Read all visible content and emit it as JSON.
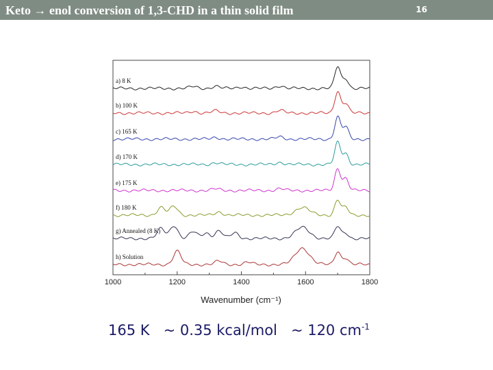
{
  "slide": {
    "title": "Keto → enol conversion of 1,3-CHD in a thin solid film",
    "number": "16",
    "caption": {
      "energy_k": "165 K",
      "energy_kcal": "~ 0.35 kcal/mol",
      "energy_cm_prefix": "~ 120 cm",
      "energy_cm_exp": "-1"
    }
  },
  "chart_data": {
    "type": "line",
    "title": "",
    "xlabel": "Wavenumber (cm⁻¹)",
    "ylabel": "",
    "xlim": [
      1000,
      1800
    ],
    "x_ticks": [
      "1000",
      "1200",
      "1400",
      "1600",
      "1800"
    ],
    "y_axis": "stacked traces, no tick labels",
    "grid": false,
    "series": [
      {
        "name": "a) 8 K",
        "color": "#222222",
        "peaks": [
          {
            "x": 1700,
            "h": 1.0
          },
          {
            "x": 1725,
            "h": 0.45
          },
          {
            "x": 1520,
            "h": 0.12
          },
          {
            "x": 1320,
            "h": 0.1
          },
          {
            "x": 1250,
            "h": 0.08
          },
          {
            "x": 1400,
            "h": 0.07
          }
        ]
      },
      {
        "name": "b) 100 K",
        "color": "#cc3333",
        "peaks": [
          {
            "x": 1700,
            "h": 1.0
          },
          {
            "x": 1725,
            "h": 0.45
          },
          {
            "x": 1520,
            "h": 0.12
          },
          {
            "x": 1320,
            "h": 0.1
          },
          {
            "x": 1250,
            "h": 0.08
          }
        ]
      },
      {
        "name": "c) 165 K",
        "color": "#3344aa",
        "peaks": [
          {
            "x": 1700,
            "h": 1.0
          },
          {
            "x": 1725,
            "h": 0.55
          },
          {
            "x": 1520,
            "h": 0.1
          },
          {
            "x": 1320,
            "h": 0.08
          }
        ]
      },
      {
        "name": "d) 170 K",
        "color": "#2a9a9a",
        "peaks": [
          {
            "x": 1700,
            "h": 1.0
          },
          {
            "x": 1725,
            "h": 0.5
          },
          {
            "x": 1520,
            "h": 0.1
          },
          {
            "x": 1320,
            "h": 0.08
          }
        ]
      },
      {
        "name": "e) 175 K",
        "color": "#cc33cc",
        "peaks": [
          {
            "x": 1700,
            "h": 1.0
          },
          {
            "x": 1725,
            "h": 0.55
          },
          {
            "x": 1520,
            "h": 0.08
          },
          {
            "x": 1320,
            "h": 0.07
          }
        ]
      },
      {
        "name": "f) 180 K",
        "color": "#8a9a2a",
        "peaks": [
          {
            "x": 1700,
            "h": 0.7
          },
          {
            "x": 1725,
            "h": 0.35
          },
          {
            "x": 1150,
            "h": 0.35
          },
          {
            "x": 1190,
            "h": 0.4
          },
          {
            "x": 1590,
            "h": 0.35
          },
          {
            "x": 1330,
            "h": 0.15
          }
        ]
      },
      {
        "name": "g) Annealed (8 K)",
        "color": "#333355",
        "peaks": [
          {
            "x": 1700,
            "h": 0.55
          },
          {
            "x": 1725,
            "h": 0.25
          },
          {
            "x": 1150,
            "h": 0.45
          },
          {
            "x": 1190,
            "h": 0.6
          },
          {
            "x": 1250,
            "h": 0.3
          },
          {
            "x": 1290,
            "h": 0.25
          },
          {
            "x": 1330,
            "h": 0.35
          },
          {
            "x": 1380,
            "h": 0.25
          },
          {
            "x": 1590,
            "h": 0.5
          }
        ]
      },
      {
        "name": "h) Solution",
        "color": "#aa3333",
        "peaks": [
          {
            "x": 1200,
            "h": 0.6
          },
          {
            "x": 1700,
            "h": 0.6
          },
          {
            "x": 1725,
            "h": 0.3
          },
          {
            "x": 1590,
            "h": 0.75
          },
          {
            "x": 1330,
            "h": 0.15
          },
          {
            "x": 1420,
            "h": 0.1
          }
        ]
      }
    ]
  }
}
